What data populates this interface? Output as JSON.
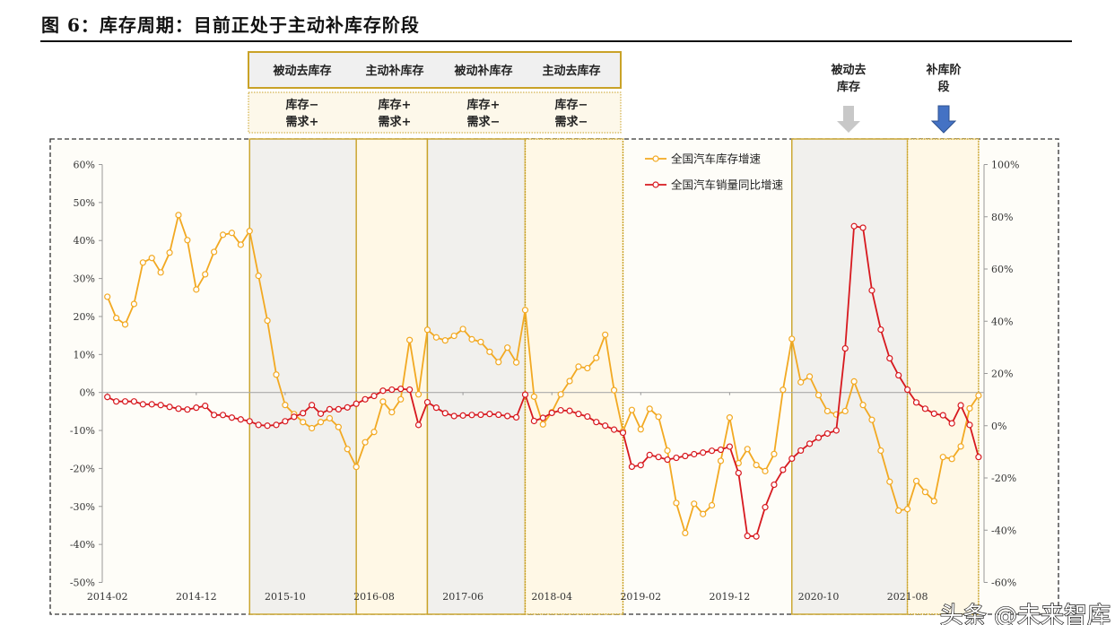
{
  "title": "图 6：库存周期：目前正处于主动补库存阶段",
  "watermark": "头条 @未来智库",
  "phase_header": {
    "names": [
      "被动去库存",
      "主动补库存",
      "被动补库存",
      "主动去库存"
    ],
    "conditions": [
      [
        "库存−",
        "需求+"
      ],
      [
        "库存+",
        "需求+"
      ],
      [
        "库存+",
        "需求−"
      ],
      [
        "库存−",
        "需求−"
      ]
    ]
  },
  "annotations": [
    {
      "lines": [
        "被动去",
        "库存"
      ],
      "arrow": "down-arrow-icon",
      "color": "#c8c8c8"
    },
    {
      "lines": [
        "补库阶",
        "段"
      ],
      "arrow": "down-arrow-icon",
      "color": "#4472c4"
    }
  ],
  "chart_data": {
    "type": "line",
    "start_month": "2014-02",
    "end_month": "2022-04",
    "x_tick_labels": [
      "2014-02",
      "2014-12",
      "2015-10",
      "2016-08",
      "2017-06",
      "2018-04",
      "2019-02",
      "2019-12",
      "2020-10",
      "2021-08"
    ],
    "y_left": {
      "ticks": [
        "60%",
        "50%",
        "40%",
        "30%",
        "20%",
        "10%",
        "0%",
        "-10%",
        "-20%",
        "-30%",
        "-40%",
        "-50%"
      ],
      "range": [
        -50,
        60
      ]
    },
    "y_right": {
      "ticks": [
        "100%",
        "80%",
        "60%",
        "40%",
        "20%",
        "0%",
        "-20%",
        "-40%",
        "-60%"
      ],
      "range": [
        -60,
        100
      ]
    },
    "grid": false,
    "legend_position": "top-right",
    "shaded_periods": [
      {
        "from": "2015-06",
        "to": "2016-06",
        "shade": "gray"
      },
      {
        "from": "2016-06",
        "to": "2017-02",
        "shade": "yellow"
      },
      {
        "from": "2017-02",
        "to": "2018-01",
        "shade": "gray"
      },
      {
        "from": "2018-01",
        "to": "2018-12",
        "shade": "yellow"
      },
      {
        "from": "2020-07",
        "to": "2021-08",
        "shade": "gray"
      },
      {
        "from": "2021-08",
        "to": "2022-04",
        "shade": "yellow"
      }
    ],
    "series": [
      {
        "name": "全国汽车库存增速",
        "axis": "left",
        "color": "#f2a922",
        "values": [
          25.2,
          19.6,
          17.9,
          23.3,
          34.2,
          35.4,
          31.6,
          36.8,
          46.7,
          40.1,
          27.1,
          31.1,
          37.0,
          41.5,
          42.0,
          38.9,
          42.5,
          30.7,
          18.9,
          4.7,
          -3.3,
          -5.7,
          -7.8,
          -9.4,
          -7.8,
          -6.8,
          -9.1,
          -14.9,
          -19.6,
          -13.1,
          -10.4,
          -2.4,
          -5.2,
          -1.8,
          13.8,
          -0.5,
          16.5,
          14.5,
          13.7,
          14.9,
          16.7,
          14.0,
          13.3,
          10.7,
          8.0,
          11.8,
          7.9,
          21.7,
          -1.1,
          -8.4,
          -5.2,
          -0.5,
          3.0,
          6.8,
          6.4,
          9.1,
          15.2,
          0.6,
          -10.2,
          -4.6,
          -9.7,
          -4.3,
          -6.4,
          -15.3,
          -29.1,
          -37.0,
          -29.3,
          -32.0,
          -29.7,
          -18.0,
          -6.6,
          -18.6,
          -14.9,
          -19.1,
          -20.7,
          -16.2,
          0.7,
          14.1,
          2.7,
          4.2,
          -0.7,
          -4.9,
          -5.8,
          -4.9,
          2.9,
          -3.3,
          -7.2,
          -15.3,
          -23.5,
          -31.1,
          -30.7,
          -23.3,
          -26.2,
          -28.6,
          -17.0,
          -17.5,
          -14.2,
          -4.2,
          -0.8
        ]
      },
      {
        "name": "全国汽车销量同比增速",
        "axis": "right",
        "color": "#d7191f",
        "values": [
          11.0,
          9.3,
          9.3,
          9.3,
          8.2,
          8.2,
          7.9,
          7.2,
          6.5,
          6.2,
          6.9,
          7.6,
          4.1,
          4.1,
          3.1,
          2.4,
          1.7,
          0.3,
          0.0,
          0.3,
          1.7,
          3.4,
          4.8,
          7.9,
          4.6,
          6.3,
          6.3,
          7.0,
          8.4,
          10.1,
          11.4,
          13.4,
          13.8,
          14.1,
          13.8,
          0.3,
          9.0,
          6.9,
          4.8,
          3.7,
          3.9,
          4.1,
          4.2,
          4.5,
          4.2,
          3.7,
          3.2,
          11.9,
          1.8,
          3.0,
          4.9,
          5.9,
          5.7,
          4.5,
          3.5,
          1.4,
          0.0,
          -1.5,
          -2.7,
          -15.7,
          -15.1,
          -11.2,
          -12.0,
          -13.0,
          -12.3,
          -11.6,
          -10.9,
          -10.3,
          -9.6,
          -9.2,
          -8.0,
          -18.1,
          -42.2,
          -42.4,
          -31.2,
          -22.6,
          -16.9,
          -12.6,
          -9.5,
          -6.9,
          -4.6,
          -3.0,
          -1.8,
          29.6,
          76.4,
          75.8,
          51.8,
          36.8,
          25.8,
          19.3,
          13.8,
          8.9,
          6.5,
          4.6,
          4.0,
          0.9,
          7.8,
          0.3,
          -12.0
        ]
      }
    ]
  }
}
